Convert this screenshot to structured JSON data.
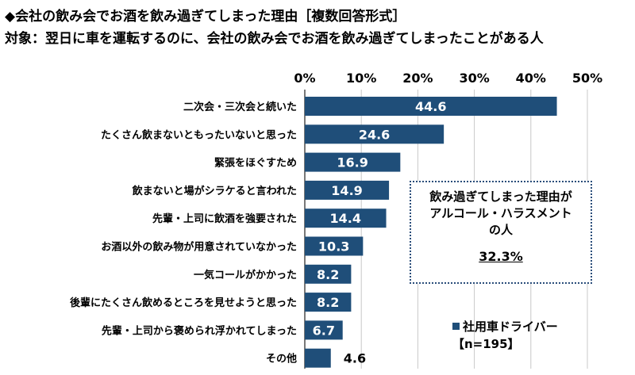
{
  "title": "◆会社の飲み会でお酒を飲み過ぎてしまった理由［複数回答形式］",
  "subtitle": "対象：翌日に車を運転するのに、会社の飲み会でお酒を飲み過ぎてしまったことがある人",
  "colors": {
    "bar": "#1f4e79",
    "grid": "#c8c8c8",
    "label_on_bar": "#ffffff",
    "label_off_bar": "#000000"
  },
  "callout": {
    "lines": [
      "飲み過ぎてしまった理由が",
      "アルコール・ハラスメント",
      "の人"
    ],
    "value": "32.3%"
  },
  "legend": {
    "series": "社用車ドライバー",
    "n": "【n=195】"
  },
  "chart_data": {
    "type": "bar",
    "orientation": "horizontal",
    "categories": [
      "二次会・三次会と続いた",
      "たくさん飲まないともったいないと思った",
      "緊張をほぐすため",
      "飲まないと場がシラケると言われた",
      "先輩・上司に飲酒を強要された",
      "お酒以外の飲み物が用意されていなかった",
      "一気コールがかかった",
      "後輩にたくさん飲めるところを見せようと思った",
      "先輩・上司から褒められ浮かれてしまった",
      "その他"
    ],
    "values": [
      44.6,
      24.6,
      16.9,
      14.9,
      14.4,
      10.3,
      8.2,
      8.2,
      6.7,
      4.6
    ],
    "value_labels": [
      "44.6",
      "24.6",
      "16.9",
      "14.9",
      "14.4",
      "10.3",
      "8.2",
      "8.2",
      "6.7",
      "4.6"
    ],
    "xlim": [
      0,
      50
    ],
    "ticks": [
      0,
      10,
      20,
      30,
      40,
      50
    ],
    "tick_labels": [
      "0%",
      "10%",
      "20%",
      "30%",
      "40%",
      "50%"
    ],
    "grid": true,
    "legend_position": "bottom-right"
  }
}
